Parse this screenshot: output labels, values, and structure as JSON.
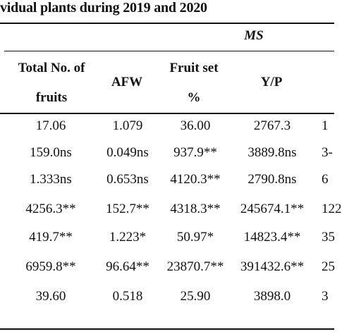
{
  "caption": "vidual plants during 2019 and 2020",
  "group_header": "MS",
  "columns": {
    "total_fruits_line1": "Total No. of",
    "total_fruits_line2": "fruits",
    "afw": "AFW",
    "fruit_set_line1": "Fruit set",
    "fruit_set_line2": "%",
    "yp": "Y/P"
  },
  "rows": [
    {
      "total": "17.06",
      "afw": "1.079",
      "fruit_set": "36.00",
      "yp": "2767.3",
      "edge": "1"
    },
    {
      "total": "159.0ns",
      "afw": "0.049ns",
      "fruit_set": "937.9**",
      "yp": "3889.8ns",
      "edge": "3-"
    },
    {
      "total": "1.333ns",
      "afw": "0.653ns",
      "fruit_set": "4120.3**",
      "yp": "2790.8ns",
      "edge": "6"
    },
    {
      "total": "4256.3**",
      "afw": "152.7**",
      "fruit_set": "4318.3**",
      "yp": "245674.1**",
      "edge": "122"
    },
    {
      "total": "419.7**",
      "afw": "1.223*",
      "fruit_set": "50.97*",
      "yp": "14823.4**",
      "edge": "35"
    },
    {
      "total": "6959.8**",
      "afw": "96.64**",
      "fruit_set": "23870.7**",
      "yp": "391432.6**",
      "edge": "25"
    },
    {
      "total": "39.60",
      "afw": "0.518",
      "fruit_set": "25.90",
      "yp": "3898.0",
      "edge": "3"
    }
  ]
}
